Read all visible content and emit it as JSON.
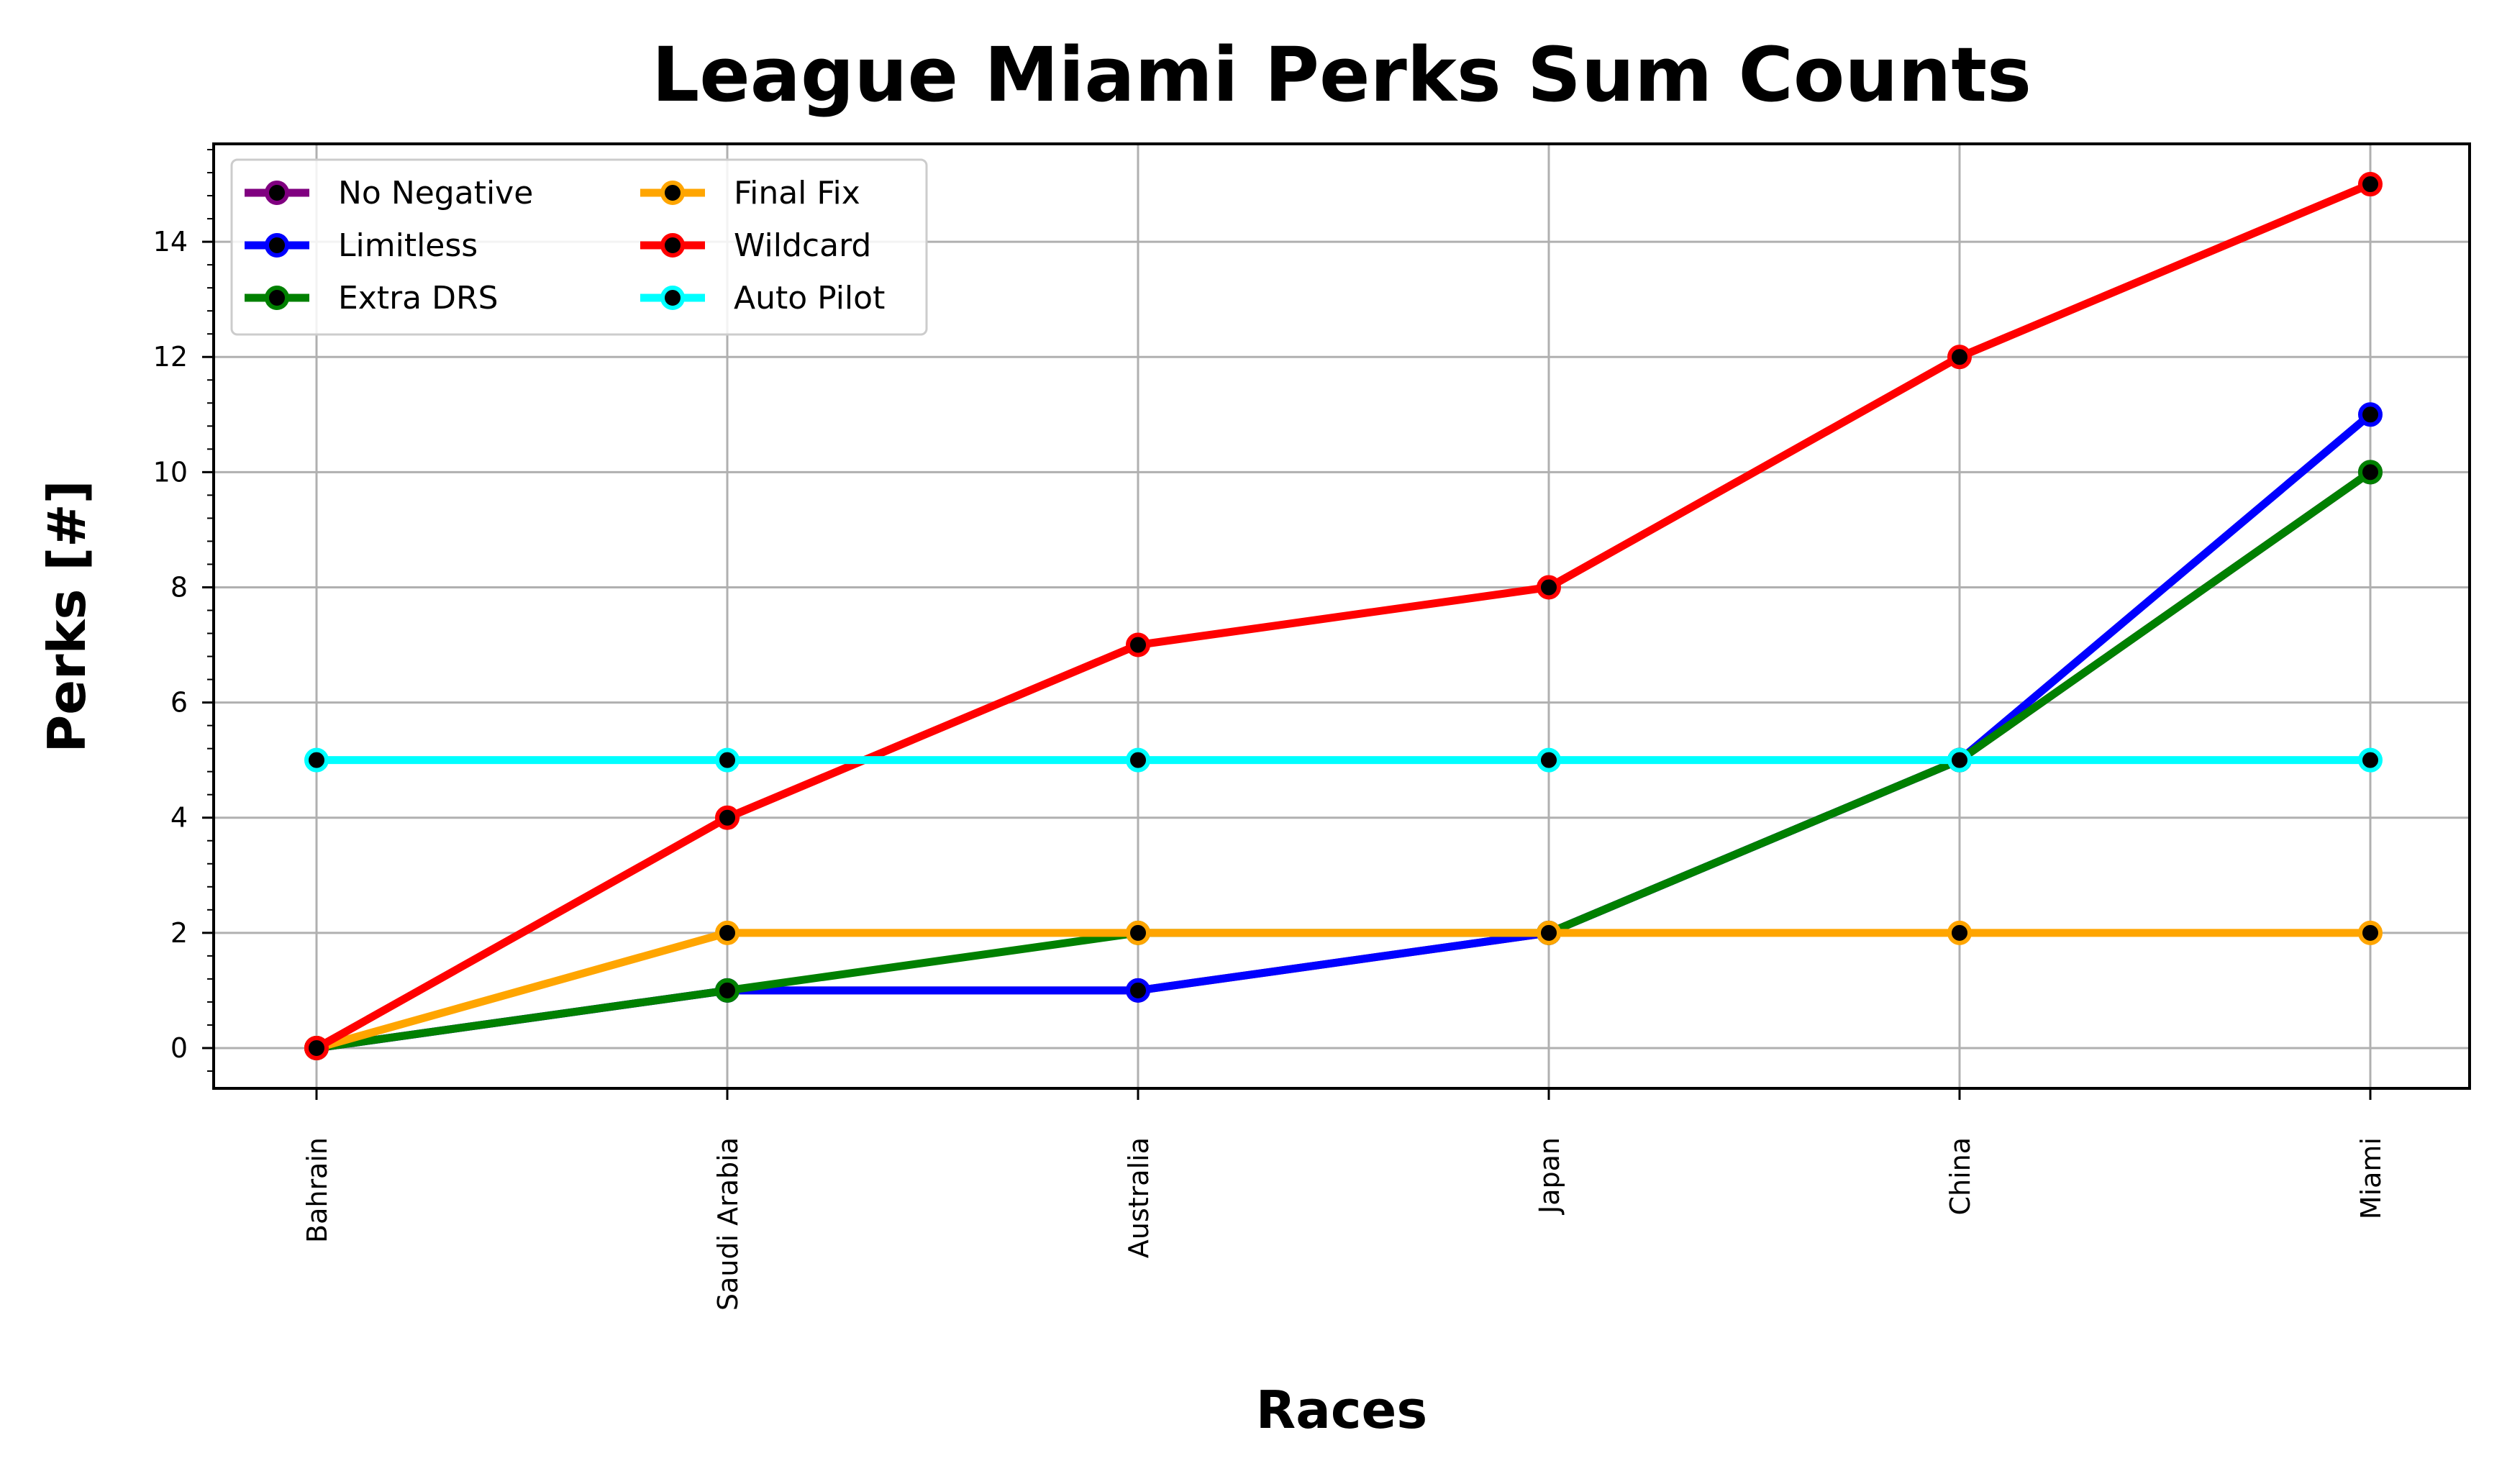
{
  "chart_data": {
    "type": "line",
    "title": "League Miami Perks Sum Counts",
    "xlabel": "Races",
    "ylabel": "Perks [#]",
    "categories": [
      "Bahrain",
      "Saudi Arabia",
      "Australia",
      "Japan",
      "China",
      "Miami"
    ],
    "ylim": [
      -0.7,
      15.7
    ],
    "yticks": [
      0,
      2,
      4,
      6,
      8,
      10,
      12,
      14
    ],
    "grid": true,
    "legend_position": "top-left",
    "marker_center_color": "#000000",
    "series": [
      {
        "name": "No Negative",
        "color": "#800080",
        "values": [
          0,
          1,
          1,
          2,
          5,
          10
        ]
      },
      {
        "name": "Limitless",
        "color": "#0000ff",
        "values": [
          0,
          1,
          1,
          2,
          5,
          11
        ]
      },
      {
        "name": "Extra DRS",
        "color": "#008000",
        "values": [
          0,
          1,
          2,
          2,
          5,
          10
        ]
      },
      {
        "name": "Final Fix",
        "color": "#ffa500",
        "values": [
          0,
          2,
          2,
          2,
          2,
          2
        ]
      },
      {
        "name": "Wildcard",
        "color": "#ff0000",
        "values": [
          0,
          4,
          7,
          8,
          12,
          15
        ]
      },
      {
        "name": "Auto Pilot",
        "color": "#00ffff",
        "values": [
          5,
          5,
          5,
          5,
          5,
          5
        ]
      }
    ]
  }
}
